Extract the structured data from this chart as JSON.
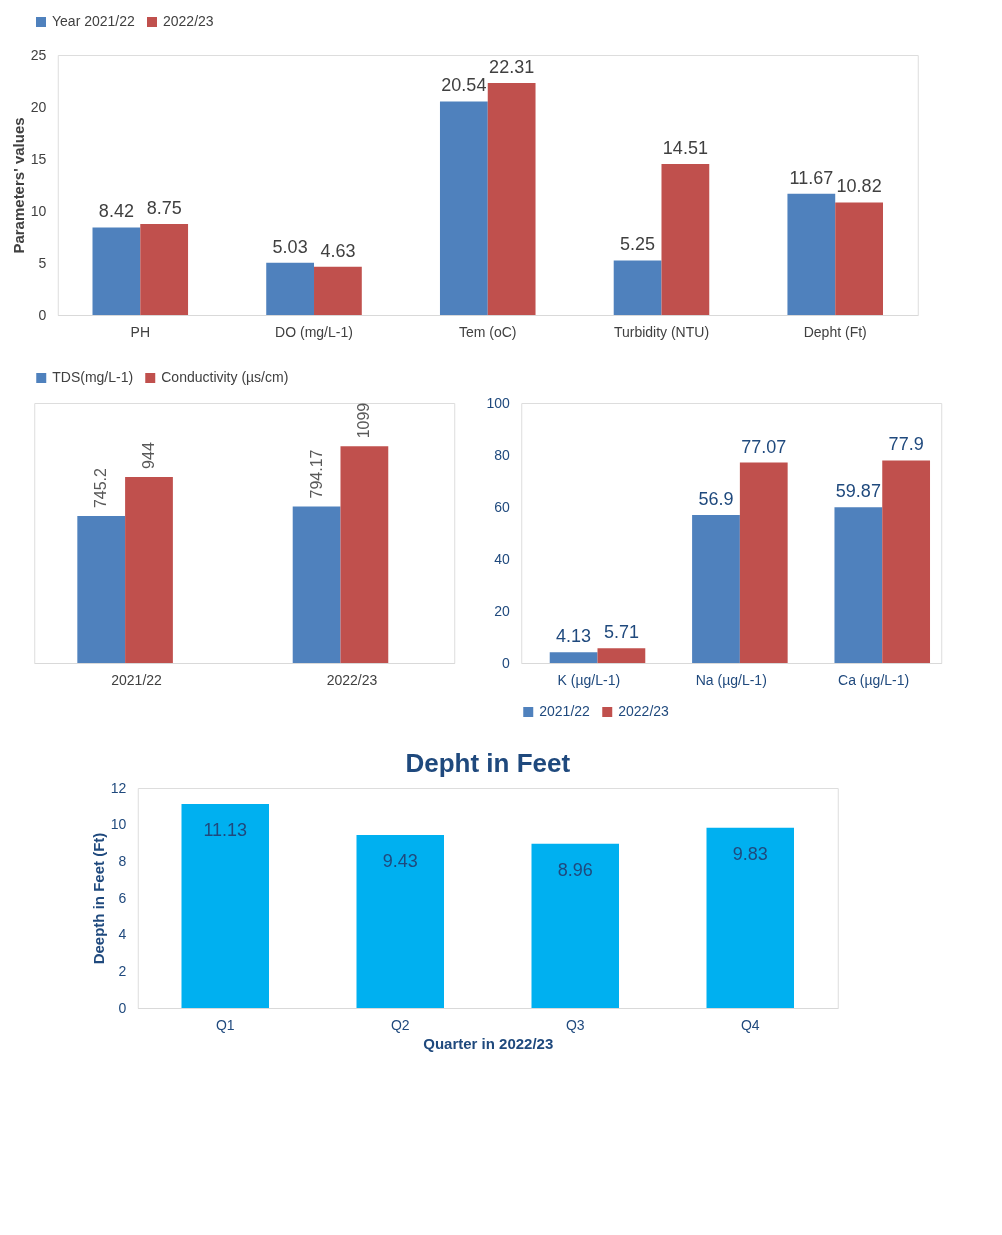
{
  "chart_data": [
    {
      "type": "bar",
      "ylabel": "Parameters' values",
      "categories": [
        "PH",
        "DO (mg/L-1)",
        "Tem (oC)",
        "Turbidity (NTU)",
        "Depht (Ft)"
      ],
      "series": [
        {
          "name": "Year 2021/22",
          "color": "#4f81bd",
          "values": [
            8.42,
            5.03,
            20.54,
            5.25,
            11.67
          ]
        },
        {
          "name": "2022/23",
          "color": "#c0504d",
          "values": [
            8.75,
            4.63,
            22.31,
            14.51,
            10.82
          ]
        }
      ],
      "ylim": [
        0,
        25
      ],
      "yticks": [
        0,
        5,
        10,
        15,
        20,
        25
      ],
      "grid": false,
      "legend": "top",
      "data_labels": true
    },
    {
      "type": "bar",
      "categories": [
        "2021/22",
        "2022/23"
      ],
      "series": [
        {
          "name": "TDS(mg/L-1)",
          "color": "#4f81bd",
          "values": [
            745.2,
            794.17
          ]
        },
        {
          "name": "Conductivity (µs/cm)",
          "color": "#c0504d",
          "values": [
            944,
            1099
          ]
        }
      ],
      "tick_labels": "x",
      "grid": false,
      "legend": "top",
      "data_labels": true
    },
    {
      "type": "bar",
      "categories": [
        "K (µg/L-1)",
        "Na (µg/L-1)",
        "Ca (µg/L-1)"
      ],
      "series": [
        {
          "name": "2021/22",
          "color": "#4f81bd",
          "values": [
            4.13,
            56.9,
            59.87
          ]
        },
        {
          "name": "2022/23",
          "color": "#c0504d",
          "values": [
            5.71,
            77.07,
            77.9
          ]
        }
      ],
      "ylim": [
        0,
        100
      ],
      "yticks": [
        0,
        20,
        40,
        60,
        80,
        100
      ],
      "grid": false,
      "legend": "bottom",
      "data_labels": true
    },
    {
      "type": "bar",
      "title": "Depht in Feet",
      "xlabel": "Quarter in 2022/23",
      "ylabel": "Deepth in Feet (Ft)",
      "categories": [
        "Q1",
        "Q2",
        "Q3",
        "Q4"
      ],
      "series": [
        {
          "color": "#00b0f0",
          "values": [
            11.13,
            9.43,
            8.96,
            9.83
          ]
        }
      ],
      "ylim": [
        0,
        12
      ],
      "yticks": [
        0,
        2,
        4,
        6,
        8,
        10,
        12
      ],
      "grid": false,
      "legend": false,
      "data_labels": true
    }
  ]
}
